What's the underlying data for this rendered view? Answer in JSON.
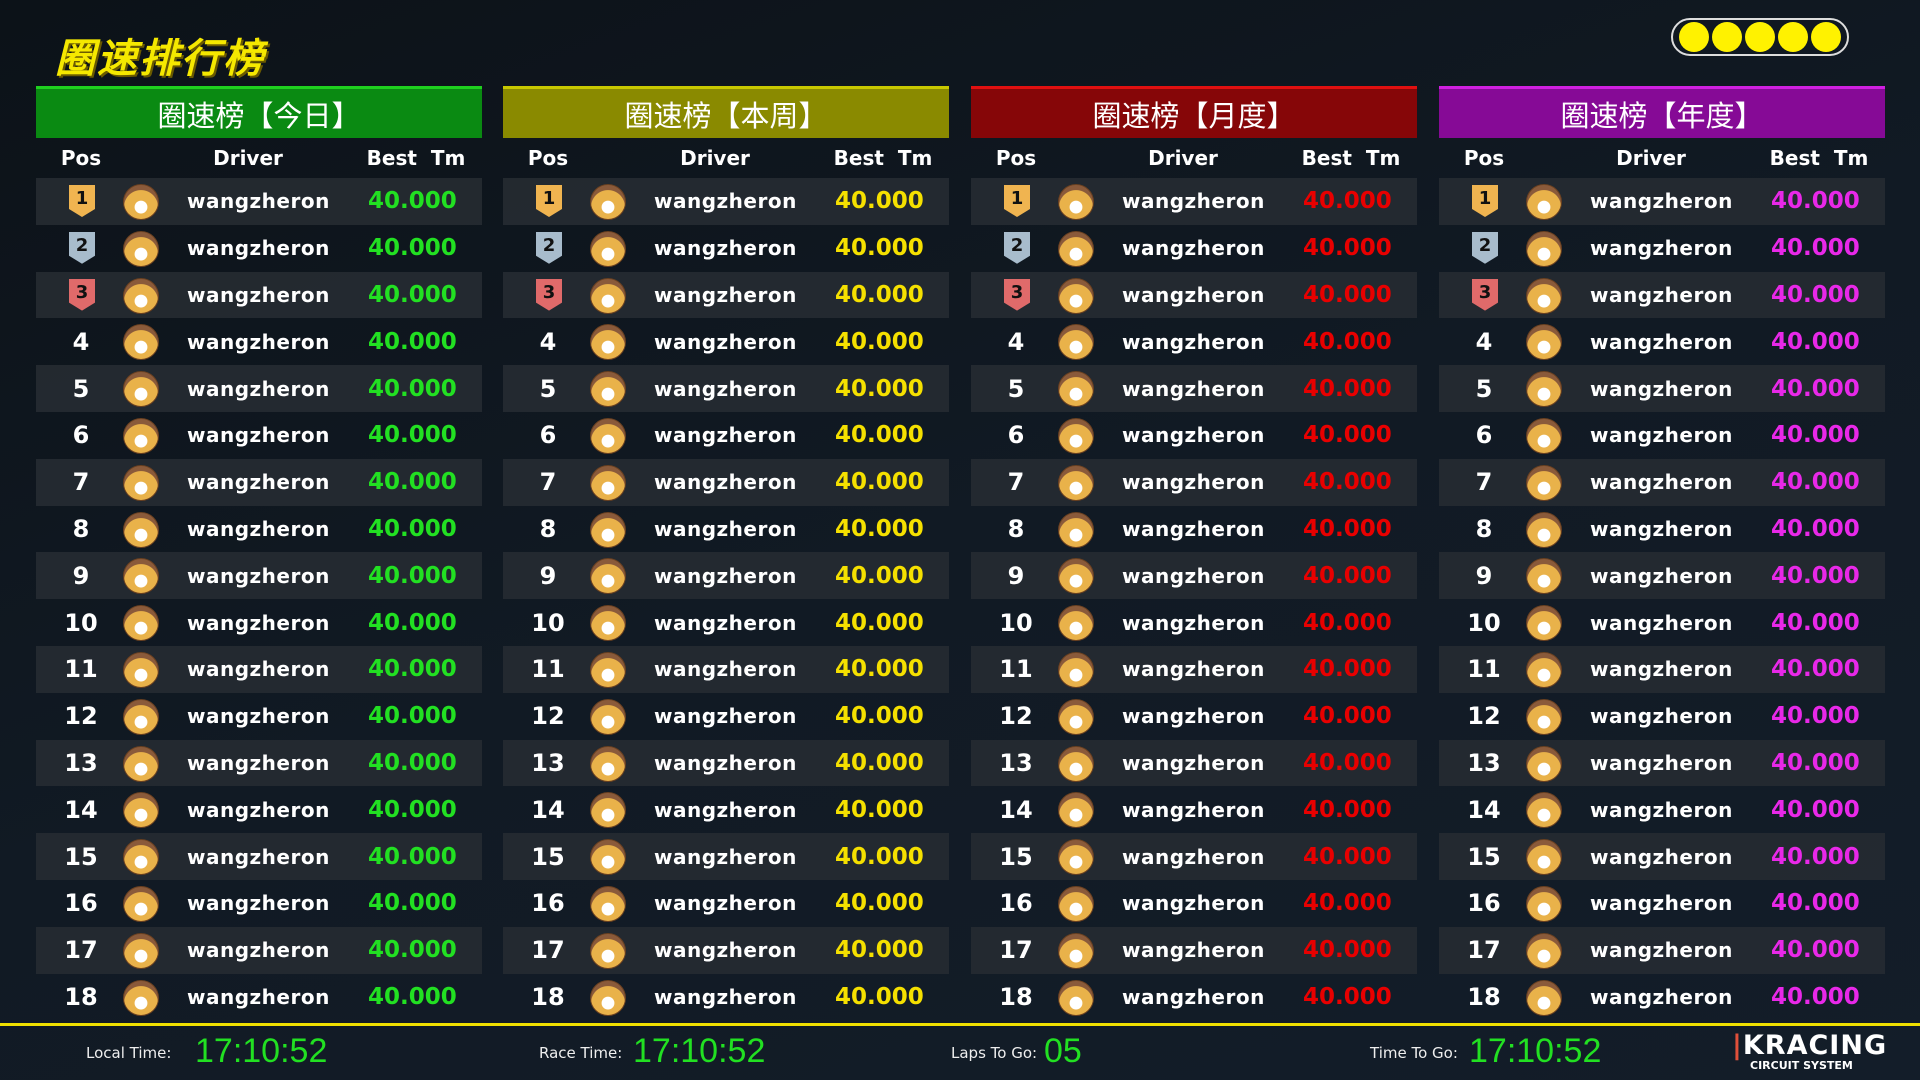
{
  "title": "圈速排行榜",
  "lights": {
    "count": 5,
    "color": "#fff200"
  },
  "columns": {
    "pos": "Pos",
    "driver": "Driver",
    "best": "Best  Tm"
  },
  "panels": [
    {
      "title": "圈速榜【今日】",
      "header_color": "#0a8a12",
      "accent_color": "#1fd01f",
      "time_color": "#22e022",
      "rows": [
        {
          "pos": "1",
          "driver": "wangzheron",
          "best": "40.000"
        },
        {
          "pos": "2",
          "driver": "wangzheron",
          "best": "40.000"
        },
        {
          "pos": "3",
          "driver": "wangzheron",
          "best": "40.000"
        },
        {
          "pos": "4",
          "driver": "wangzheron",
          "best": "40.000"
        },
        {
          "pos": "5",
          "driver": "wangzheron",
          "best": "40.000"
        },
        {
          "pos": "6",
          "driver": "wangzheron",
          "best": "40.000"
        },
        {
          "pos": "7",
          "driver": "wangzheron",
          "best": "40.000"
        },
        {
          "pos": "8",
          "driver": "wangzheron",
          "best": "40.000"
        },
        {
          "pos": "9",
          "driver": "wangzheron",
          "best": "40.000"
        },
        {
          "pos": "10",
          "driver": "wangzheron",
          "best": "40.000"
        },
        {
          "pos": "11",
          "driver": "wangzheron",
          "best": "40.000"
        },
        {
          "pos": "12",
          "driver": "wangzheron",
          "best": "40.000"
        },
        {
          "pos": "13",
          "driver": "wangzheron",
          "best": "40.000"
        },
        {
          "pos": "14",
          "driver": "wangzheron",
          "best": "40.000"
        },
        {
          "pos": "15",
          "driver": "wangzheron",
          "best": "40.000"
        },
        {
          "pos": "16",
          "driver": "wangzheron",
          "best": "40.000"
        },
        {
          "pos": "17",
          "driver": "wangzheron",
          "best": "40.000"
        },
        {
          "pos": "18",
          "driver": "wangzheron",
          "best": "40.000"
        }
      ]
    },
    {
      "title": "圈速榜【本周】",
      "header_color": "#8a8a00",
      "accent_color": "#c8c800",
      "time_color": "#f5e000",
      "rows": [
        {
          "pos": "1",
          "driver": "wangzheron",
          "best": "40.000"
        },
        {
          "pos": "2",
          "driver": "wangzheron",
          "best": "40.000"
        },
        {
          "pos": "3",
          "driver": "wangzheron",
          "best": "40.000"
        },
        {
          "pos": "4",
          "driver": "wangzheron",
          "best": "40.000"
        },
        {
          "pos": "5",
          "driver": "wangzheron",
          "best": "40.000"
        },
        {
          "pos": "6",
          "driver": "wangzheron",
          "best": "40.000"
        },
        {
          "pos": "7",
          "driver": "wangzheron",
          "best": "40.000"
        },
        {
          "pos": "8",
          "driver": "wangzheron",
          "best": "40.000"
        },
        {
          "pos": "9",
          "driver": "wangzheron",
          "best": "40.000"
        },
        {
          "pos": "10",
          "driver": "wangzheron",
          "best": "40.000"
        },
        {
          "pos": "11",
          "driver": "wangzheron",
          "best": "40.000"
        },
        {
          "pos": "12",
          "driver": "wangzheron",
          "best": "40.000"
        },
        {
          "pos": "13",
          "driver": "wangzheron",
          "best": "40.000"
        },
        {
          "pos": "14",
          "driver": "wangzheron",
          "best": "40.000"
        },
        {
          "pos": "15",
          "driver": "wangzheron",
          "best": "40.000"
        },
        {
          "pos": "16",
          "driver": "wangzheron",
          "best": "40.000"
        },
        {
          "pos": "17",
          "driver": "wangzheron",
          "best": "40.000"
        },
        {
          "pos": "18",
          "driver": "wangzheron",
          "best": "40.000"
        }
      ]
    },
    {
      "title": "圈速榜【月度】",
      "header_color": "#860608",
      "accent_color": "#e01010",
      "time_color": "#e80000",
      "rows": [
        {
          "pos": "1",
          "driver": "wangzheron",
          "best": "40.000"
        },
        {
          "pos": "2",
          "driver": "wangzheron",
          "best": "40.000"
        },
        {
          "pos": "3",
          "driver": "wangzheron",
          "best": "40.000"
        },
        {
          "pos": "4",
          "driver": "wangzheron",
          "best": "40.000"
        },
        {
          "pos": "5",
          "driver": "wangzheron",
          "best": "40.000"
        },
        {
          "pos": "6",
          "driver": "wangzheron",
          "best": "40.000"
        },
        {
          "pos": "7",
          "driver": "wangzheron",
          "best": "40.000"
        },
        {
          "pos": "8",
          "driver": "wangzheron",
          "best": "40.000"
        },
        {
          "pos": "9",
          "driver": "wangzheron",
          "best": "40.000"
        },
        {
          "pos": "10",
          "driver": "wangzheron",
          "best": "40.000"
        },
        {
          "pos": "11",
          "driver": "wangzheron",
          "best": "40.000"
        },
        {
          "pos": "12",
          "driver": "wangzheron",
          "best": "40.000"
        },
        {
          "pos": "13",
          "driver": "wangzheron",
          "best": "40.000"
        },
        {
          "pos": "14",
          "driver": "wangzheron",
          "best": "40.000"
        },
        {
          "pos": "15",
          "driver": "wangzheron",
          "best": "40.000"
        },
        {
          "pos": "16",
          "driver": "wangzheron",
          "best": "40.000"
        },
        {
          "pos": "17",
          "driver": "wangzheron",
          "best": "40.000"
        },
        {
          "pos": "18",
          "driver": "wangzheron",
          "best": "40.000"
        }
      ]
    },
    {
      "title": "圈速榜【年度】",
      "header_color": "#860a96",
      "accent_color": "#d020e0",
      "time_color": "#e828e8",
      "rows": [
        {
          "pos": "1",
          "driver": "wangzheron",
          "best": "40.000"
        },
        {
          "pos": "2",
          "driver": "wangzheron",
          "best": "40.000"
        },
        {
          "pos": "3",
          "driver": "wangzheron",
          "best": "40.000"
        },
        {
          "pos": "4",
          "driver": "wangzheron",
          "best": "40.000"
        },
        {
          "pos": "5",
          "driver": "wangzheron",
          "best": "40.000"
        },
        {
          "pos": "6",
          "driver": "wangzheron",
          "best": "40.000"
        },
        {
          "pos": "7",
          "driver": "wangzheron",
          "best": "40.000"
        },
        {
          "pos": "8",
          "driver": "wangzheron",
          "best": "40.000"
        },
        {
          "pos": "9",
          "driver": "wangzheron",
          "best": "40.000"
        },
        {
          "pos": "10",
          "driver": "wangzheron",
          "best": "40.000"
        },
        {
          "pos": "11",
          "driver": "wangzheron",
          "best": "40.000"
        },
        {
          "pos": "12",
          "driver": "wangzheron",
          "best": "40.000"
        },
        {
          "pos": "13",
          "driver": "wangzheron",
          "best": "40.000"
        },
        {
          "pos": "14",
          "driver": "wangzheron",
          "best": "40.000"
        },
        {
          "pos": "15",
          "driver": "wangzheron",
          "best": "40.000"
        },
        {
          "pos": "16",
          "driver": "wangzheron",
          "best": "40.000"
        },
        {
          "pos": "17",
          "driver": "wangzheron",
          "best": "40.000"
        },
        {
          "pos": "18",
          "driver": "wangzheron",
          "best": "40.000"
        }
      ]
    }
  ],
  "medal_colors": [
    "#f0b450",
    "#a8bccc",
    "#e06a6a"
  ],
  "footer": {
    "local_time_label": "Local Time:",
    "local_time": "17:10:52",
    "race_time_label": "Race Time:",
    "race_time": "17:10:52",
    "laps_label": "Laps To Go:",
    "laps": "05",
    "time_to_go_label": "Time  To Go:",
    "time_to_go": "17:10:52",
    "value_color": "#22e022"
  },
  "logo": {
    "brand": "KRACING",
    "tagline": "CIRCUIT SYSTEM"
  }
}
